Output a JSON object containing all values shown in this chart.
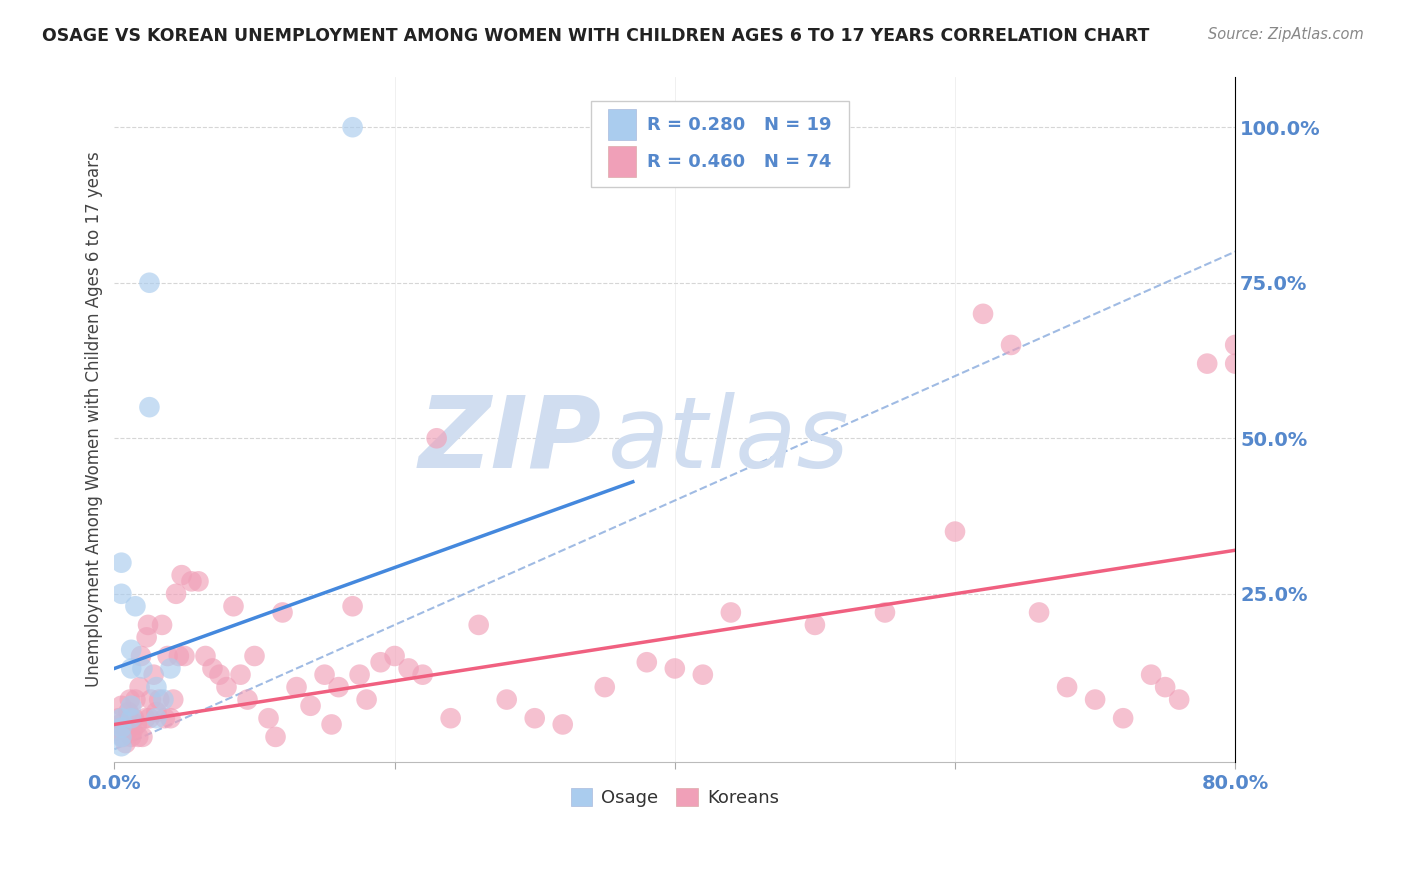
{
  "title": "OSAGE VS KOREAN UNEMPLOYMENT AMONG WOMEN WITH CHILDREN AGES 6 TO 17 YEARS CORRELATION CHART",
  "source": "Source: ZipAtlas.com",
  "ylabel": "Unemployment Among Women with Children Ages 6 to 17 years",
  "xlim": [
    0.0,
    0.8
  ],
  "ylim": [
    -0.02,
    1.08
  ],
  "xticks": [
    0.0,
    0.2,
    0.4,
    0.6,
    0.8
  ],
  "xtick_labels": [
    "0.0%",
    "",
    "",
    "",
    "80.0%"
  ],
  "ytick_labels_right": [
    "100.0%",
    "75.0%",
    "50.0%",
    "25.0%"
  ],
  "ytick_vals_right": [
    1.0,
    0.75,
    0.5,
    0.25
  ],
  "background_color": "#ffffff",
  "title_color": "#222222",
  "axis_color": "#5588cc",
  "watermark_zip": "ZIP",
  "watermark_atlas": "atlas",
  "watermark_color": "#d0ddf0",
  "osage_color": "#aaccee",
  "korean_color": "#f0a0b8",
  "osage_line_color": "#4488dd",
  "korean_line_color": "#f06080",
  "ref_line_color": "#88aadd",
  "legend_osage_r": "R = 0.280",
  "legend_osage_n": "N = 19",
  "legend_korean_r": "R = 0.460",
  "legend_korean_n": "N = 74",
  "osage_x": [
    0.005,
    0.005,
    0.005,
    0.005,
    0.005,
    0.012,
    0.012,
    0.012,
    0.012,
    0.015,
    0.02,
    0.025,
    0.025,
    0.03,
    0.03,
    0.035,
    0.04,
    0.17,
    0.005
  ],
  "osage_y": [
    0.005,
    0.02,
    0.035,
    0.05,
    0.25,
    0.05,
    0.07,
    0.13,
    0.16,
    0.23,
    0.13,
    0.55,
    0.75,
    0.05,
    0.1,
    0.08,
    0.13,
    1.0,
    0.3
  ],
  "korean_x": [
    0.002,
    0.003,
    0.004,
    0.005,
    0.006,
    0.008,
    0.009,
    0.01,
    0.011,
    0.012,
    0.013,
    0.014,
    0.015,
    0.016,
    0.017,
    0.018,
    0.019,
    0.02,
    0.022,
    0.023,
    0.024,
    0.025,
    0.026,
    0.028,
    0.03,
    0.032,
    0.034,
    0.036,
    0.038,
    0.04,
    0.042,
    0.044,
    0.046,
    0.048,
    0.05,
    0.055,
    0.06,
    0.065,
    0.07,
    0.075,
    0.08,
    0.085,
    0.09,
    0.095,
    0.1,
    0.11,
    0.115,
    0.12,
    0.13,
    0.14,
    0.15,
    0.155,
    0.16,
    0.17,
    0.175,
    0.18,
    0.19,
    0.2,
    0.21,
    0.22,
    0.23,
    0.24,
    0.26,
    0.28,
    0.3,
    0.32,
    0.35,
    0.38,
    0.4,
    0.42,
    0.44,
    0.5,
    0.55,
    0.6
  ],
  "korean_y": [
    0.03,
    0.05,
    0.04,
    0.07,
    0.02,
    0.01,
    0.03,
    0.06,
    0.08,
    0.02,
    0.03,
    0.05,
    0.08,
    0.04,
    0.02,
    0.1,
    0.15,
    0.02,
    0.05,
    0.18,
    0.2,
    0.05,
    0.08,
    0.12,
    0.06,
    0.08,
    0.2,
    0.05,
    0.15,
    0.05,
    0.08,
    0.25,
    0.15,
    0.28,
    0.15,
    0.27,
    0.27,
    0.15,
    0.13,
    0.12,
    0.1,
    0.23,
    0.12,
    0.08,
    0.15,
    0.05,
    0.02,
    0.22,
    0.1,
    0.07,
    0.12,
    0.04,
    0.1,
    0.23,
    0.12,
    0.08,
    0.14,
    0.15,
    0.13,
    0.12,
    0.5,
    0.05,
    0.2,
    0.08,
    0.05,
    0.04,
    0.1,
    0.14,
    0.13,
    0.12,
    0.22,
    0.2,
    0.22,
    0.35
  ],
  "korean_x2": [
    0.62,
    0.64,
    0.66,
    0.68,
    0.7,
    0.72,
    0.74,
    0.75,
    0.76,
    0.78,
    0.8,
    0.8
  ],
  "korean_y2": [
    0.7,
    0.65,
    0.22,
    0.1,
    0.08,
    0.05,
    0.12,
    0.1,
    0.08,
    0.62,
    0.62,
    0.65
  ],
  "osage_line_x": [
    0.0,
    0.37
  ],
  "osage_line_y": [
    0.13,
    0.43
  ],
  "korean_line_x": [
    0.0,
    0.8
  ],
  "korean_line_y": [
    0.04,
    0.32
  ]
}
